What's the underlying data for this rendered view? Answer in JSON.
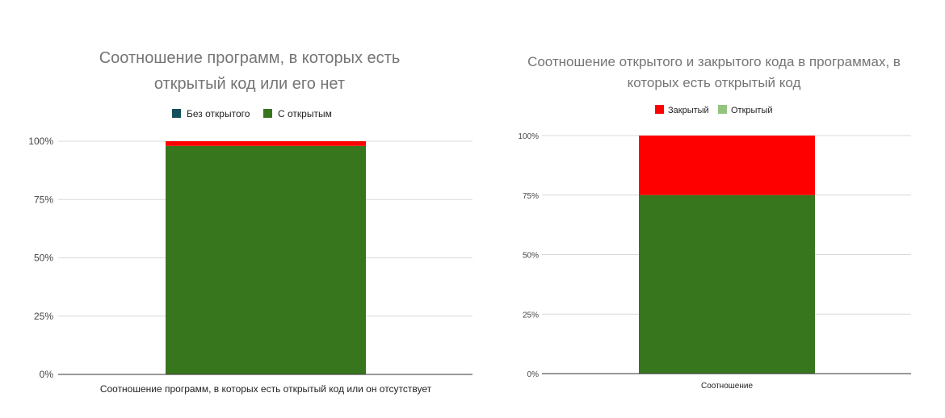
{
  "chart_data": [
    {
      "type": "bar",
      "stacked": "percent",
      "title_lines": [
        "Соотношение программ, в которых есть",
        "открытый код или его нет"
      ],
      "legend_position": "top",
      "categories": [
        "Соотношение программ, в которых есть открытый код или он отсутствует"
      ],
      "series": [
        {
          "name": "Без открытого",
          "values": [
            2
          ],
          "color": "#ff0000",
          "legend_color": "#134f5c"
        },
        {
          "name": "С открытым",
          "values": [
            98
          ],
          "color": "#38761d",
          "legend_color": "#38761d"
        }
      ],
      "y_ticks": [
        "0%",
        "25%",
        "50%",
        "75%",
        "100%"
      ],
      "ylim": [
        0,
        100
      ],
      "grid": true
    },
    {
      "type": "bar",
      "stacked": "percent",
      "title_lines": [
        "Соотношение открытого и закрытого кода в программах, в",
        "которых есть открытый код"
      ],
      "legend_position": "top",
      "categories": [
        "Соотношение"
      ],
      "series": [
        {
          "name": "Закрытый",
          "values": [
            25
          ],
          "color": "#ff0000",
          "legend_color": "#ff0000"
        },
        {
          "name": "Открытый",
          "values": [
            75
          ],
          "color": "#38761d",
          "legend_color": "#93c47d"
        }
      ],
      "y_ticks": [
        "0%",
        "25%",
        "50%",
        "75%",
        "100%"
      ],
      "ylim": [
        0,
        100
      ],
      "grid": true
    }
  ]
}
